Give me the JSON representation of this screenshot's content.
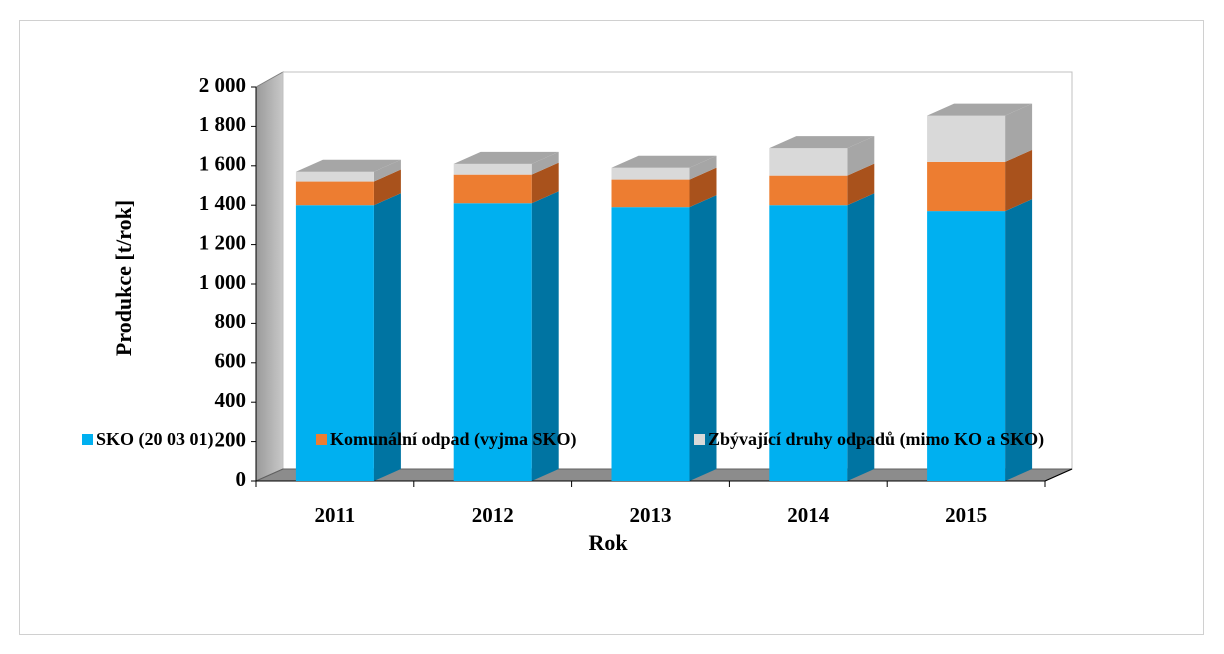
{
  "chart_data": {
    "type": "bar3d_stacked",
    "x_label": "Rok",
    "y_label": "Produkce [t/rok]",
    "categories": [
      "2011",
      "2012",
      "2013",
      "2014",
      "2015"
    ],
    "series": [
      {
        "name": "SKO (20 03 01)",
        "color": "#00b0f0",
        "side_color": "#0074a2",
        "values": [
          1400,
          1410,
          1390,
          1400,
          1370
        ]
      },
      {
        "name": "Komunální odpad (vyjma SKO)",
        "color": "#ed7d31",
        "side_color": "#a9521c",
        "values": [
          120,
          145,
          140,
          150,
          250
        ]
      },
      {
        "name": "Zbývající druhy odpadů (mimo KO a SKO)",
        "color": "#d9d9d9",
        "side_color": "#a6a6a6",
        "values": [
          50,
          55,
          60,
          140,
          235
        ]
      }
    ],
    "ylim": [
      0,
      2000
    ],
    "yticks": [
      0,
      200,
      400,
      600,
      800,
      {
        "value": 1000,
        "label": "1 000"
      },
      {
        "value": 1200,
        "label": "1 200"
      },
      {
        "value": 1400,
        "label": "1 400"
      },
      {
        "value": 1600,
        "label": "1 600"
      },
      {
        "value": 1800,
        "label": "1 800"
      },
      {
        "value": 2000,
        "label": "2 000"
      }
    ],
    "legend": "bottom"
  }
}
